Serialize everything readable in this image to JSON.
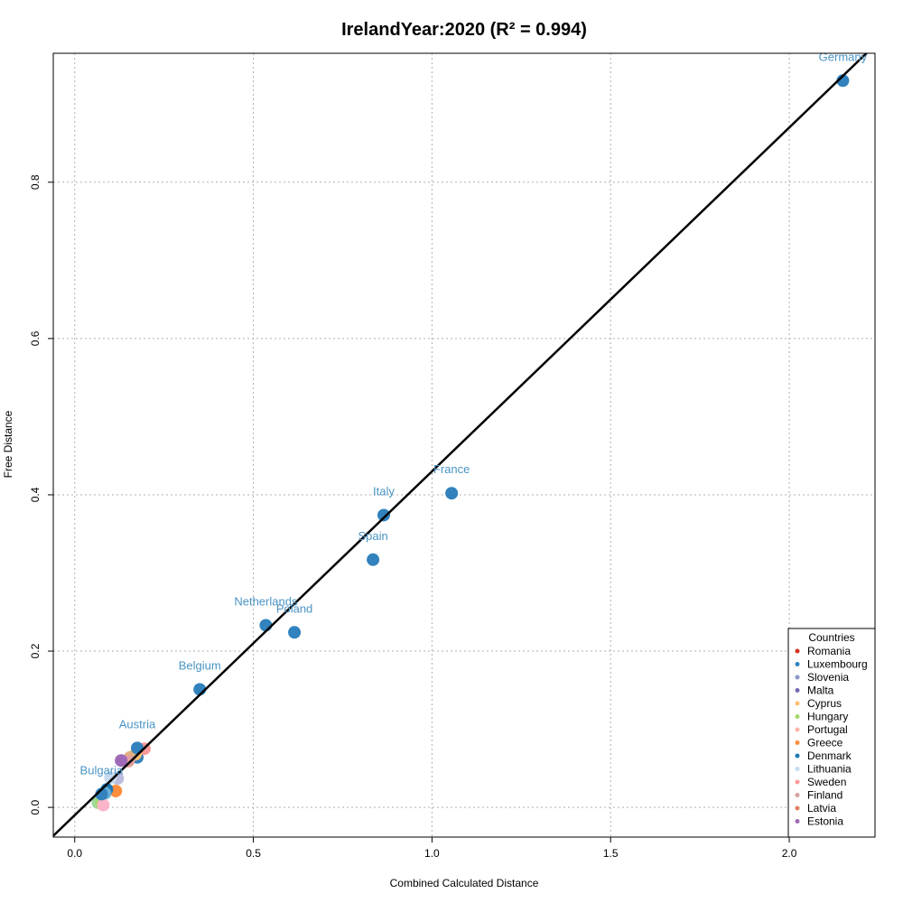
{
  "chart_data": {
    "type": "scatter",
    "title": "IrelandYear:2020 (R² = 0.994)",
    "xlabel": "Combined Calculated Distance",
    "ylabel": "Free Distance",
    "xlim": [
      -0.06,
      2.24
    ],
    "ylim": [
      -0.038,
      0.965
    ],
    "x_ticks": [
      0.0,
      0.5,
      1.0,
      1.5,
      2.0
    ],
    "x_tick_labels": [
      "0.0",
      "0.5",
      "1.0",
      "1.5",
      "2.0"
    ],
    "y_ticks": [
      0.0,
      0.2,
      0.4,
      0.6,
      0.8
    ],
    "y_tick_labels": [
      "0.0",
      "0.2",
      "0.4",
      "0.6",
      "0.8"
    ],
    "grid": true,
    "fit_line": {
      "color": "#000000",
      "slope": 0.44,
      "intercept": -0.01
    },
    "labeled_points": [
      {
        "name": "Germany",
        "x": 2.15,
        "y": 0.93,
        "color": "#3182bd"
      },
      {
        "name": "France",
        "x": 1.055,
        "y": 0.402,
        "color": "#3182bd"
      },
      {
        "name": "Italy",
        "x": 0.865,
        "y": 0.374,
        "color": "#3182bd"
      },
      {
        "name": "Spain",
        "x": 0.835,
        "y": 0.317,
        "color": "#3182bd"
      },
      {
        "name": "Netherlands",
        "x": 0.535,
        "y": 0.233,
        "color": "#3182bd"
      },
      {
        "name": "Poland",
        "x": 0.615,
        "y": 0.224,
        "color": "#3182bd"
      },
      {
        "name": "Belgium",
        "x": 0.35,
        "y": 0.151,
        "color": "#3182bd"
      },
      {
        "name": "Austria",
        "x": 0.175,
        "y": 0.076,
        "color": "#3182bd"
      },
      {
        "name": "Bulgaria",
        "x": 0.075,
        "y": 0.017,
        "color": "#3182bd"
      }
    ],
    "unlabeled_points": [
      {
        "x": 0.175,
        "y": 0.064,
        "color": "#3182bd"
      },
      {
        "x": 0.195,
        "y": 0.075,
        "color": "#fb9a99"
      },
      {
        "x": 0.17,
        "y": 0.068,
        "color": "#fdbf6f"
      },
      {
        "x": 0.155,
        "y": 0.064,
        "color": "#e0b080"
      },
      {
        "x": 0.15,
        "y": 0.059,
        "color": "#e6a0a0"
      },
      {
        "x": 0.13,
        "y": 0.06,
        "color": "#9e6ab8"
      },
      {
        "x": 0.12,
        "y": 0.037,
        "color": "#bcbddc"
      },
      {
        "x": 0.1,
        "y": 0.038,
        "color": "#c6dbef"
      },
      {
        "x": 0.115,
        "y": 0.021,
        "color": "#fd8d3c"
      },
      {
        "x": 0.09,
        "y": 0.023,
        "color": "#1f78b4"
      },
      {
        "x": 0.085,
        "y": 0.018,
        "color": "#6baed6"
      },
      {
        "x": 0.065,
        "y": 0.006,
        "color": "#a1d99b"
      },
      {
        "x": 0.075,
        "y": 0.005,
        "color": "#a6d96a"
      },
      {
        "x": 0.08,
        "y": 0.003,
        "color": "#fbb4c9"
      }
    ],
    "legend": {
      "title": "Countries",
      "placement": "bottom-right",
      "entries": [
        {
          "label": "Romania",
          "color": "#d7301f"
        },
        {
          "label": "Luxembourg",
          "color": "#3182bd"
        },
        {
          "label": "Slovenia",
          "color": "#8c96c6"
        },
        {
          "label": "Malta",
          "color": "#756bb1"
        },
        {
          "label": "Cyprus",
          "color": "#fdbf6f"
        },
        {
          "label": "Hungary",
          "color": "#a6d96a"
        },
        {
          "label": "Portugal",
          "color": "#fbb4a9"
        },
        {
          "label": "Greece",
          "color": "#fd8d3c"
        },
        {
          "label": "Denmark",
          "color": "#1f78b4"
        },
        {
          "label": "Lithuania",
          "color": "#c6dbef"
        },
        {
          "label": "Sweden",
          "color": "#fb9a99"
        },
        {
          "label": "Finland",
          "color": "#d6a0a0"
        },
        {
          "label": "Latvia",
          "color": "#e08060"
        },
        {
          "label": "Estonia",
          "color": "#9e6ab8"
        }
      ]
    }
  }
}
